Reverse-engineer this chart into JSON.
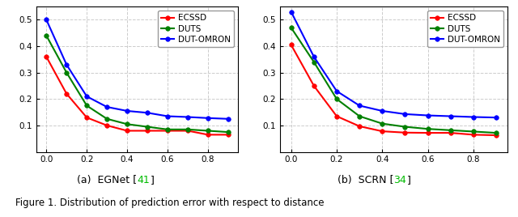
{
  "x": [
    0.0,
    0.1,
    0.2,
    0.3,
    0.4,
    0.5,
    0.6,
    0.7,
    0.8,
    0.9
  ],
  "egnet": {
    "ecssd": [
      0.36,
      0.22,
      0.13,
      0.1,
      0.08,
      0.08,
      0.08,
      0.08,
      0.065,
      0.065
    ],
    "duts": [
      0.44,
      0.3,
      0.175,
      0.125,
      0.105,
      0.095,
      0.085,
      0.085,
      0.08,
      0.075
    ],
    "dut_omron": [
      0.5,
      0.33,
      0.21,
      0.17,
      0.155,
      0.148,
      0.135,
      0.132,
      0.128,
      0.125
    ]
  },
  "scrn": {
    "ecssd": [
      0.405,
      0.25,
      0.135,
      0.097,
      0.078,
      0.073,
      0.072,
      0.072,
      0.065,
      0.063
    ],
    "duts": [
      0.47,
      0.34,
      0.2,
      0.135,
      0.107,
      0.095,
      0.087,
      0.082,
      0.077,
      0.072
    ],
    "dut_omron": [
      0.53,
      0.36,
      0.23,
      0.175,
      0.155,
      0.143,
      0.138,
      0.135,
      0.132,
      0.13
    ]
  },
  "colors": {
    "ecssd": "#ff0000",
    "duts": "#008000",
    "dut_omron": "#0000ff"
  },
  "labels": {
    "ecssd": "ECSSD",
    "duts": "DUTS",
    "dut_omron": "DUT-OMRON"
  },
  "ylim": [
    0.0,
    0.55
  ],
  "xlim": [
    -0.05,
    0.95
  ],
  "yticks": [
    0.1,
    0.2,
    0.3,
    0.4,
    0.5
  ],
  "xticks": [
    0.0,
    0.2,
    0.4,
    0.6,
    0.8
  ],
  "grid_color": "#cccccc",
  "grid_style": "--",
  "marker": "o",
  "marker_size": 4,
  "line_width": 1.5,
  "ref_color": "#00bb00",
  "caption_fontsize": 8.5,
  "subtitle_fontsize": 9,
  "tick_fontsize": 7.5,
  "legend_fontsize": 7.5,
  "figure_caption": "Figure 1. Distribution of prediction error with respect to distance"
}
